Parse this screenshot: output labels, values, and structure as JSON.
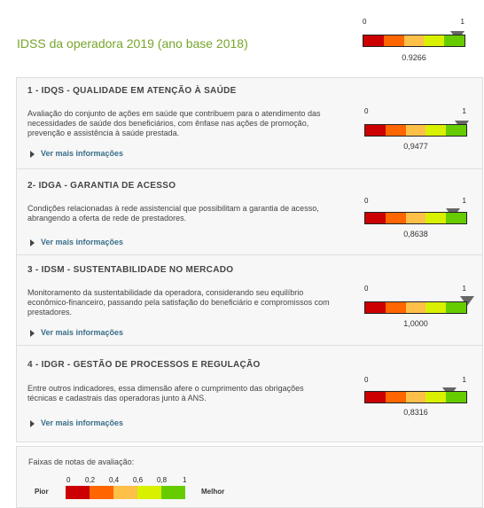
{
  "header": {
    "title": "IDSS da operadora 2019 (ano base 2018)",
    "scale_min": "0",
    "scale_max": "1",
    "value_label": "0.9266",
    "value": 0.9266
  },
  "sections": [
    {
      "title": "1 - IDQS - QUALIDADE EM ATENÇÃO À SAÚDE",
      "description": "Avaliação do conjunto de ações em saúde que contribuem para o atendimento das necessidades de saúde dos beneficiários, com ênfase nas ações de promoção, prevenção e assistência à saúde prestada.",
      "more_label": "Ver mais informações",
      "scale_min": "0",
      "scale_max": "1",
      "value_label": "0,9477",
      "value": 0.9477
    },
    {
      "title": "2- IDGA - GARANTIA DE ACESSO",
      "description": "Condições relacionadas à rede assistencial que possibilitam a garantia de acesso, abrangendo a oferta de rede de prestadores.",
      "more_label": "Ver mais informações",
      "scale_min": "0",
      "scale_max": "1",
      "value_label": "0,8638",
      "value": 0.8638
    },
    {
      "title": "3 - IDSM - SUSTENTABILIDADE NO MERCADO",
      "description": "Monitoramento da sustentabilidade da operadora, considerando seu equilíbrio econômico-financeiro, passando pela satisfação do beneficiário e compromissos com prestadores.",
      "more_label": "Ver mais informações",
      "scale_min": "0",
      "scale_max": "1",
      "value_label": "1,0000",
      "value": 1.0
    },
    {
      "title": "4 - IDGR - GESTÃO DE PROCESSOS E REGULAÇÃO",
      "description": "Entre outros indicadores, essa dimensão afere o cumprimento das obrigações técnicas e cadastrais das operadoras junto à ANS.",
      "more_label": "Ver mais informações",
      "scale_min": "0",
      "scale_max": "1",
      "value_label": "0,8316",
      "value": 0.8316
    }
  ],
  "legend": {
    "title": "Faixas de notas de avaliação:",
    "worse_label": "Pior",
    "better_label": "Melhor",
    "ticks": [
      "0",
      "0,2",
      "0,4",
      "0,6",
      "0,8",
      "1"
    ]
  },
  "colors": {
    "band_1": "#cc0000",
    "band_2": "#ff6600",
    "band_3": "#ffc04a",
    "band_4": "#d9f000",
    "band_5": "#66cc00",
    "title_green": "#76a52b",
    "link_blue": "#3a6f8a"
  },
  "icons": {
    "marker": "triangle-down-marker-icon",
    "expand": "triangle-right-icon"
  }
}
